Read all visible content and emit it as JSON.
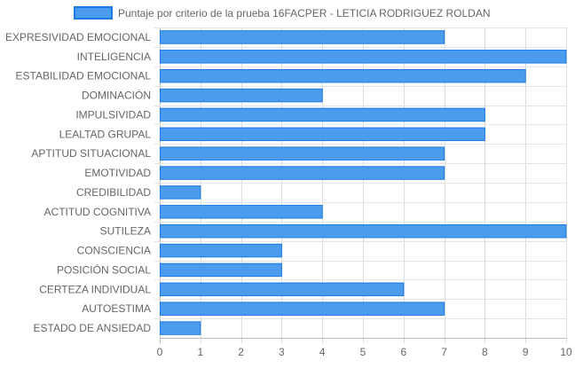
{
  "chart_data": {
    "type": "bar",
    "orientation": "horizontal",
    "legend_position": "top",
    "grid": true,
    "xlim": [
      0,
      10
    ],
    "x_ticks": [
      0,
      1,
      2,
      3,
      4,
      5,
      6,
      7,
      8,
      9,
      10
    ],
    "categories": [
      "EXPRESIVIDAD EMOCIONAL",
      "INTELIGENCIA",
      "ESTABILIDAD EMOCIONAL",
      "DOMINACIÓN",
      "IMPULSIVIDAD",
      "LEALTAD GRUPAL",
      "APTITUD SITUACIONAL",
      "EMOTIVIDAD",
      "CREDIBILIDAD",
      "ACTITUD COGNITIVA",
      "SUTILEZA",
      "CONSCIENCIA",
      "POSICIÓN SOCIAL",
      "CERTEZA INDIVIDUAL",
      "AUTOESTIMA",
      "ESTADO DE ANSIEDAD"
    ],
    "series": [
      {
        "name": "Puntaje por criterio de la prueba 16FACPER - LETICIA RODRIGUEZ ROLDAN",
        "color": "#4b9ced",
        "border_color": "#1a7ae6",
        "values": [
          7,
          10,
          9,
          4,
          8,
          8,
          7,
          7,
          1,
          4,
          10,
          3,
          3,
          6,
          7,
          1
        ]
      }
    ]
  }
}
